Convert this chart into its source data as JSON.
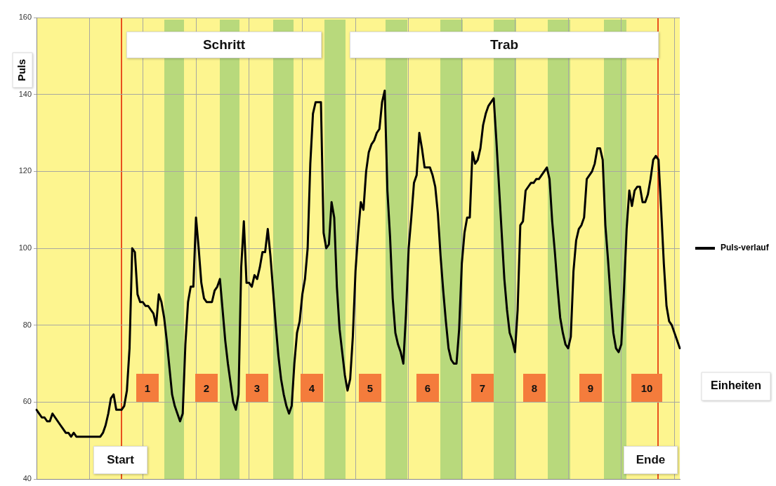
{
  "chart_data": {
    "type": "line",
    "ylabel": "Puls",
    "xlabel": "Einheiten",
    "categories": [
      null,
      null,
      null,
      null,
      null,
      null,
      null,
      null,
      null,
      null,
      null,
      null,
      null,
      null,
      null,
      null,
      null,
      null,
      null,
      null,
      null,
      null,
      null,
      null,
      null,
      null,
      null,
      null,
      null,
      null,
      null,
      null,
      null,
      null,
      null,
      null,
      null,
      null,
      null,
      null,
      null,
      null,
      null,
      null,
      null,
      null,
      null,
      null,
      null,
      null,
      null,
      null,
      null,
      null,
      null,
      null,
      null,
      null,
      null,
      null,
      null,
      null,
      null,
      null,
      null,
      null,
      null,
      null,
      null,
      null,
      null,
      null,
      null,
      null,
      null,
      null,
      null,
      null,
      null,
      null,
      null,
      null,
      null,
      null,
      null,
      null,
      null,
      null,
      null,
      null,
      null,
      null,
      null,
      null,
      null,
      null,
      null,
      null,
      null,
      null,
      null,
      null,
      null,
      null,
      null,
      null,
      null,
      null,
      null,
      null,
      null,
      null,
      null,
      null,
      null,
      null,
      null,
      null,
      null,
      null,
      null,
      null,
      null,
      null,
      null,
      null,
      null,
      null,
      null,
      null,
      null,
      null,
      null,
      null,
      null,
      null,
      null,
      null,
      null,
      null,
      null,
      null,
      null,
      null,
      null,
      null,
      null,
      null,
      null,
      null,
      null,
      null,
      null,
      null,
      null,
      null,
      null,
      null,
      null,
      null,
      null,
      null,
      null,
      null,
      null,
      null,
      null,
      null,
      null,
      null,
      null,
      null,
      null,
      null,
      null,
      null,
      null,
      null,
      null,
      null,
      null,
      null,
      null,
      null,
      null,
      null,
      null,
      null,
      null,
      null,
      null,
      null,
      null,
      null,
      null,
      null,
      null,
      null,
      null,
      null,
      null,
      null,
      null,
      null,
      null,
      null,
      null,
      null,
      null,
      null,
      null,
      null,
      null,
      null,
      null,
      null,
      null,
      null,
      null,
      null,
      null,
      null,
      null,
      null,
      null,
      null,
      null,
      null,
      null,
      null,
      null,
      null,
      null,
      null,
      null,
      null,
      null,
      null,
      null,
      null,
      null,
      null,
      null
    ],
    "ylim": [
      40,
      160
    ],
    "yticks": [
      40,
      60,
      80,
      100,
      120,
      140,
      160
    ],
    "tick_labels": "y",
    "grid": true,
    "legend": "right",
    "series": [
      {
        "name": "Puls-verlauf",
        "color": "#000000",
        "values": [
          58,
          57,
          56,
          56,
          55,
          55,
          57,
          56,
          55,
          54,
          53,
          52,
          52,
          51,
          52,
          51,
          51,
          51,
          51,
          51,
          51,
          51,
          51,
          51,
          51,
          52,
          54,
          57,
          61,
          62,
          58,
          58,
          58,
          59,
          63,
          74,
          100,
          99,
          88,
          86,
          86,
          85,
          85,
          84,
          83,
          80,
          88,
          86,
          82,
          76,
          69,
          62,
          59,
          57,
          55,
          57,
          75,
          86,
          90,
          90,
          108,
          100,
          91,
          87,
          86,
          86,
          86,
          89,
          90,
          92,
          84,
          76,
          70,
          65,
          60,
          58,
          62,
          95,
          107,
          91,
          91,
          90,
          93,
          92,
          95,
          99,
          99,
          105,
          98,
          89,
          80,
          72,
          66,
          62,
          59,
          57,
          59,
          70,
          78,
          81,
          88,
          92,
          100,
          122,
          135,
          138,
          138,
          138,
          104,
          100,
          101,
          112,
          108,
          90,
          79,
          73,
          67,
          63,
          66,
          77,
          94,
          104,
          112,
          110,
          120,
          125,
          127,
          128,
          130,
          131,
          138,
          141,
          115,
          103,
          87,
          78,
          75,
          73,
          70,
          83,
          100,
          108,
          117,
          119,
          130,
          126,
          121,
          121,
          121,
          119,
          116,
          109,
          98,
          89,
          81,
          74,
          71,
          70,
          70,
          79,
          96,
          104,
          108,
          108,
          125,
          122,
          123,
          126,
          132,
          135,
          137,
          138,
          139,
          128,
          116,
          104,
          92,
          84,
          78,
          76,
          73,
          84,
          106,
          107,
          115,
          116,
          117,
          117,
          118,
          118,
          119,
          120,
          121,
          118,
          107,
          99,
          90,
          82,
          78,
          75,
          74,
          77,
          94,
          102,
          105,
          106,
          108,
          118,
          119,
          120,
          122,
          126,
          126,
          123,
          106,
          97,
          87,
          78,
          74,
          73,
          75,
          89,
          105,
          115,
          111,
          115,
          116,
          116,
          112,
          112,
          114,
          118,
          123,
          124,
          123,
          110,
          96,
          85,
          81,
          80,
          78,
          76,
          74
        ]
      }
    ],
    "annotations": [
      "Schritt",
      "Trab",
      "1",
      "2",
      "3",
      "4",
      "5",
      "6",
      "7",
      "8",
      "9",
      "10",
      "Start",
      "Ende"
    ]
  }
}
